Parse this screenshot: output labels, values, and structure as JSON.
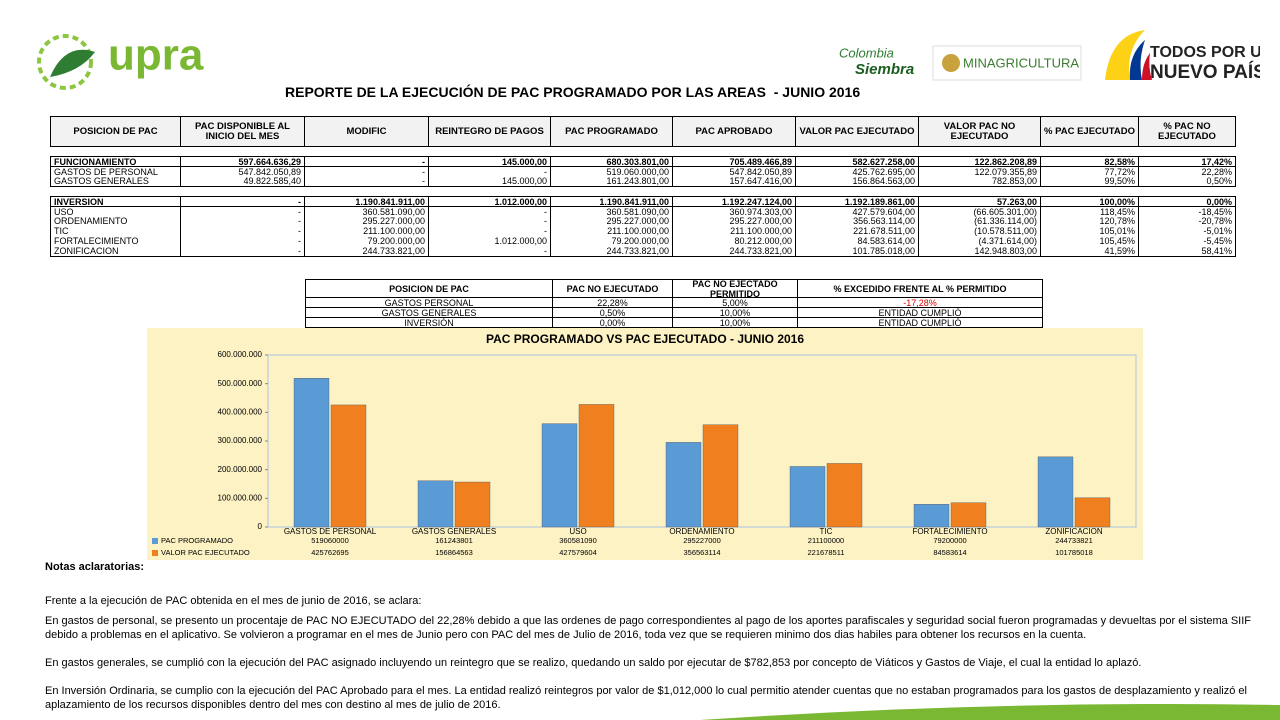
{
  "header": {
    "logo_upra": "upra",
    "logo_colombia": "Colombia",
    "logo_siembra": "Siembra",
    "logo_minagricultura": "MINAGRICULTURA",
    "logo_todos": "TODOS POR UN",
    "logo_nuevo_pais": "NUEVO PAÍS"
  },
  "title": "REPORTE DE LA EJECUCIÓN DE PAC PROGRAMADO POR LAS AREAS  - JUNIO 2016",
  "table": {
    "columns": [
      "POSICION DE PAC",
      "PAC DISPONIBLE AL INICIO DEL MES",
      "MODIFIC",
      "REINTEGRO DE PAGOS",
      "PAC PROGRAMADO",
      "PAC APROBADO",
      "VALOR PAC EJECUTADO",
      "VALOR PAC NO EJECUTADO",
      "% PAC EJECUTADO",
      "% PAC NO EJECUTADO"
    ],
    "rows": [
      [
        "FUNCIONAMIENTO",
        "597.664.636,29",
        "-",
        "145.000,00",
        "680.303.801,00",
        "705.489.466,89",
        "582.627.258,00",
        "122.862.208,89",
        "82,58%",
        "17,42%"
      ],
      [
        "GASTOS DE PERSONAL",
        "547.842.050,89",
        "-",
        "-",
        "519.060.000,00",
        "547.842.050,89",
        "425.762.695,00",
        "122.079.355,89",
        "77,72%",
        "22,28%"
      ],
      [
        "GASTOS GENERALES",
        "49.822.585,40",
        "-",
        "145.000,00",
        "161.243.801,00",
        "157.647.416,00",
        "156.864.563,00",
        "782.853,00",
        "99,50%",
        "0,50%"
      ],
      [
        "INVERSION",
        "-",
        "1.190.841.911,00",
        "1.012.000,00",
        "1.190.841.911,00",
        "1.192.247.124,00",
        "1.192.189.861,00",
        "57.263,00",
        "100,00%",
        "0,00%"
      ],
      [
        "USO",
        "-",
        "360.581.090,00",
        "-",
        "360.581.090,00",
        "360.974.303,00",
        "427.579.604,00",
        "(66.605.301,00)",
        "118,45%",
        "-18,45%"
      ],
      [
        "ORDENAMIENTO",
        "-",
        "295.227.000,00",
        "-",
        "295.227.000,00",
        "295.227.000,00",
        "356.563.114,00",
        "(61.336.114,00)",
        "120,78%",
        "-20,78%"
      ],
      [
        "TIC",
        "-",
        "211.100.000,00",
        "-",
        "211.100.000,00",
        "211.100.000,00",
        "221.678.511,00",
        "(10.578.511,00)",
        "105,01%",
        "-5,01%"
      ],
      [
        "FORTALECIMIENTO",
        "-",
        "79.200.000,00",
        "1.012.000,00",
        "79.200.000,00",
        "80.212.000,00",
        "84.583.614,00",
        "(4.371.614,00)",
        "105,45%",
        "-5,45%"
      ],
      [
        "ZONIFICACION",
        "-",
        "244.733.821,00",
        "-",
        "244.733.821,00",
        "244.733.821,00",
        "101.785.018,00",
        "142.948.803,00",
        "41,59%",
        "58,41%"
      ]
    ]
  },
  "summary_table": {
    "columns": [
      "POSICION DE PAC",
      "PAC NO EJECUTADO",
      "PAC NO EJECTADO PERMITIDO",
      "%  EXCEDIDO FRENTE AL % PERMITIDO"
    ],
    "rows": [
      [
        "GASTOS PERSONAL",
        "22,28%",
        "5,00%",
        "-17,28%"
      ],
      [
        "GASTOS GENERALES",
        "0,50%",
        "10,00%",
        "ENTIDAD CUMPLIÓ"
      ],
      [
        "INVERSIÓN",
        "0,00%",
        "10,00%",
        "ENTIDAD CUMPLIÓ"
      ]
    ]
  },
  "chart_data": {
    "type": "bar",
    "title": "PAC PROGRAMADO VS PAC EJECUTADO - JUNIO 2016",
    "categories": [
      "GASTOS DE PERSONAL",
      "GASTOS GENERALES",
      "USO",
      "ORDENAMIENTO",
      "TIC",
      "FORTALECIMIENTO",
      "ZONIFICACION"
    ],
    "series": [
      {
        "name": "PAC PROGRAMADO",
        "color": "#5b9bd5",
        "values": [
          519060000,
          161243801,
          360581090,
          295227000,
          211100000,
          79200000,
          244733821
        ]
      },
      {
        "name": "VALOR PAC EJECUTADO",
        "color": "#f0801f",
        "values": [
          425762695,
          156864563,
          427579604,
          356563114,
          221678511,
          84583614,
          101785018
        ]
      }
    ],
    "ylim": [
      0,
      600000000
    ],
    "yticks": [
      0,
      {
        "value": 100000000,
        "label": "100.000.000"
      },
      {
        "value": 200000000,
        "label": "200.000.000"
      },
      {
        "value": 300000000,
        "label": "300.000.000"
      },
      {
        "value": 400000000,
        "label": "400.000.000"
      },
      {
        "value": 500000000,
        "label": "500.000.000"
      },
      {
        "value": 600000000,
        "label": "600.000.000"
      }
    ],
    "grid": false
  },
  "notes": {
    "heading": "Notas aclaratorias:",
    "paragraphs": [
      "Frente a la ejecución de PAC obtenida en el mes de junio de 2016, se aclara:",
      "En gastos de personal, se presento un procentaje de PAC NO EJECUTADO del 22,28% debido a que las ordenes de pago correspondientes al pago de los aportes parafiscales y seguridad social fueron programadas y devueltas por el sistema SIIF debido a problemas en el aplicativo.  Se volvieron a programar en el mes de Junio pero con PAC del mes de Julio de 2016, toda vez que se requieren minimo dos dias habiles para obtener los recursos en la cuenta.",
      "En gastos generales, se cumplió con la ejecución del PAC asignado incluyendo un reintegro que se realizo, quedando un saldo por ejecutar de $782,853 por concepto de Viáticos y Gastos de Viaje, el cual la entidad lo aplazó.",
      "En Inversión Ordinaria, se cumplio con la ejecución del PAC Aprobado para el mes.  La entidad realizó reintegros por valor de $1,012,000 lo cual permitio atender cuentas que no estaban programados para los gastos de desplazamiento y realizó el aplazamiento de los recursos disponibles dentro del mes con destino al mes de julio de 2016."
    ]
  }
}
